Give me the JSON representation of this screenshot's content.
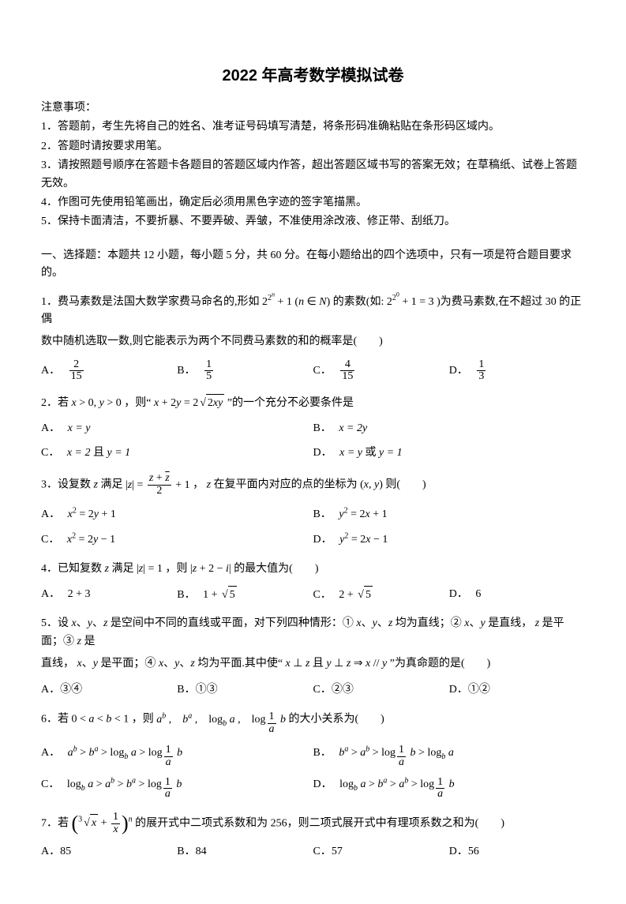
{
  "title": "2022 年高考数学模拟试卷",
  "notice_head": "注意事项：",
  "notice": [
    "1．答题前，考生先将自己的姓名、准考证号码填写清楚，将条形码准确粘贴在条形码区域内。",
    "2．答题时请按要求用笔。",
    "3．请按照题号顺序在答题卡各题目的答题区域内作答，超出答题区域书写的答案无效；在草稿纸、试卷上答题无效。",
    "4．作图可先使用铅笔画出，确定后必须用黑色字迹的签字笔描黑。",
    "5．保持卡面清洁，不要折暴、不要弄破、弄皱，不准使用涂改液、修正带、刮纸刀。"
  ],
  "section1": "一、选择题：本题共 12 小题，每小题 5 分，共 60 分。在每小题给出的四个选项中，只有一项是符合题目要求的。",
  "q1": {
    "pre": "1．费马素数是法国大数学家费马命名的,形如 ",
    "mid1": " 的素数(如: ",
    "mid2": ")为费马素数,在不超过 30 的正偶",
    "line2": "数中随机选取一数,则它能表示为两个不同费马素数的和的概率是(　　)",
    "A": "A．",
    "B": "B．",
    "C": "C．",
    "D": "D．",
    "f1n": "2",
    "f1d": "15",
    "f2n": "1",
    "f2d": "5",
    "f3n": "4",
    "f3d": "15",
    "f4n": "1",
    "f4d": "3"
  },
  "q2": {
    "stem_pre": "2．若 ",
    "cond": " ，则“ ",
    "stem_post": " ”的一个充分不必要条件是",
    "A": "A．",
    "B": "B．",
    "C": "C．",
    "D": "D．",
    "Atxt": "x = y",
    "Btxt": "x = 2y",
    "Ctxt_pre": "x = 2",
    "Ctxt_mid": " 且 ",
    "Ctxt_post": "y = 1",
    "Dtxt_pre": "x = y",
    "Dtxt_mid": " 或 ",
    "Dtxt_post": "y = 1"
  },
  "q3": {
    "stem_pre": "3．设复数 ",
    "z": "z",
    "stem_mid1": " 满足 ",
    "stem_mid2": " ， ",
    "stem_mid3": " 在复平面内对应的点的坐标为 ",
    "stem_post": " 则(　　)",
    "A": "A．",
    "B": "B．",
    "C": "C．",
    "D": "D．"
  },
  "q4": {
    "stem_pre": "4．已知复数 ",
    "stem_mid": " 满足 ",
    "stem_mid2": " ，则 ",
    "stem_post": " 的最大值为(　　)",
    "A": "A．",
    "B": "B．",
    "C": "C．",
    "D": "D．",
    "Atxt": "2 + 3",
    "Dtxt": "6"
  },
  "q5": {
    "line1_pre": "5．设 ",
    "line1_mid": " 是空间中不同的直线或平面，对下列四种情形：① ",
    "line1_mid2": " 均为直线；② ",
    "line1_mid3": " 是直线，",
    "line1_mid4": " 是平面；③ ",
    "line1_post": " 是",
    "line2_pre": "直线，",
    "line2_mid": " 是平面；④ ",
    "line2_mid2": " 均为平面.其中使“ ",
    "line2_post": " ”为真命题的是(　　)",
    "A": "A．③④",
    "B": "B．①③",
    "C": "C．②③",
    "D": "D．①②"
  },
  "q6": {
    "stem_pre": "6．若 ",
    "stem_mid": " ，则 ",
    "stem_post": " 的大小关系为(　　)",
    "A": "A．",
    "B": "B．",
    "C": "C．",
    "D": "D．"
  },
  "q7": {
    "stem_pre": "7．若 ",
    "stem_mid": " 的展开式中二项式系数和为 256，则二项式展开式中有理项系数之和为(　　)",
    "A": "A．85",
    "B": "B．84",
    "C": "C．57",
    "D": "D．56"
  },
  "labels": {
    "comma": "，",
    "and": "、"
  }
}
